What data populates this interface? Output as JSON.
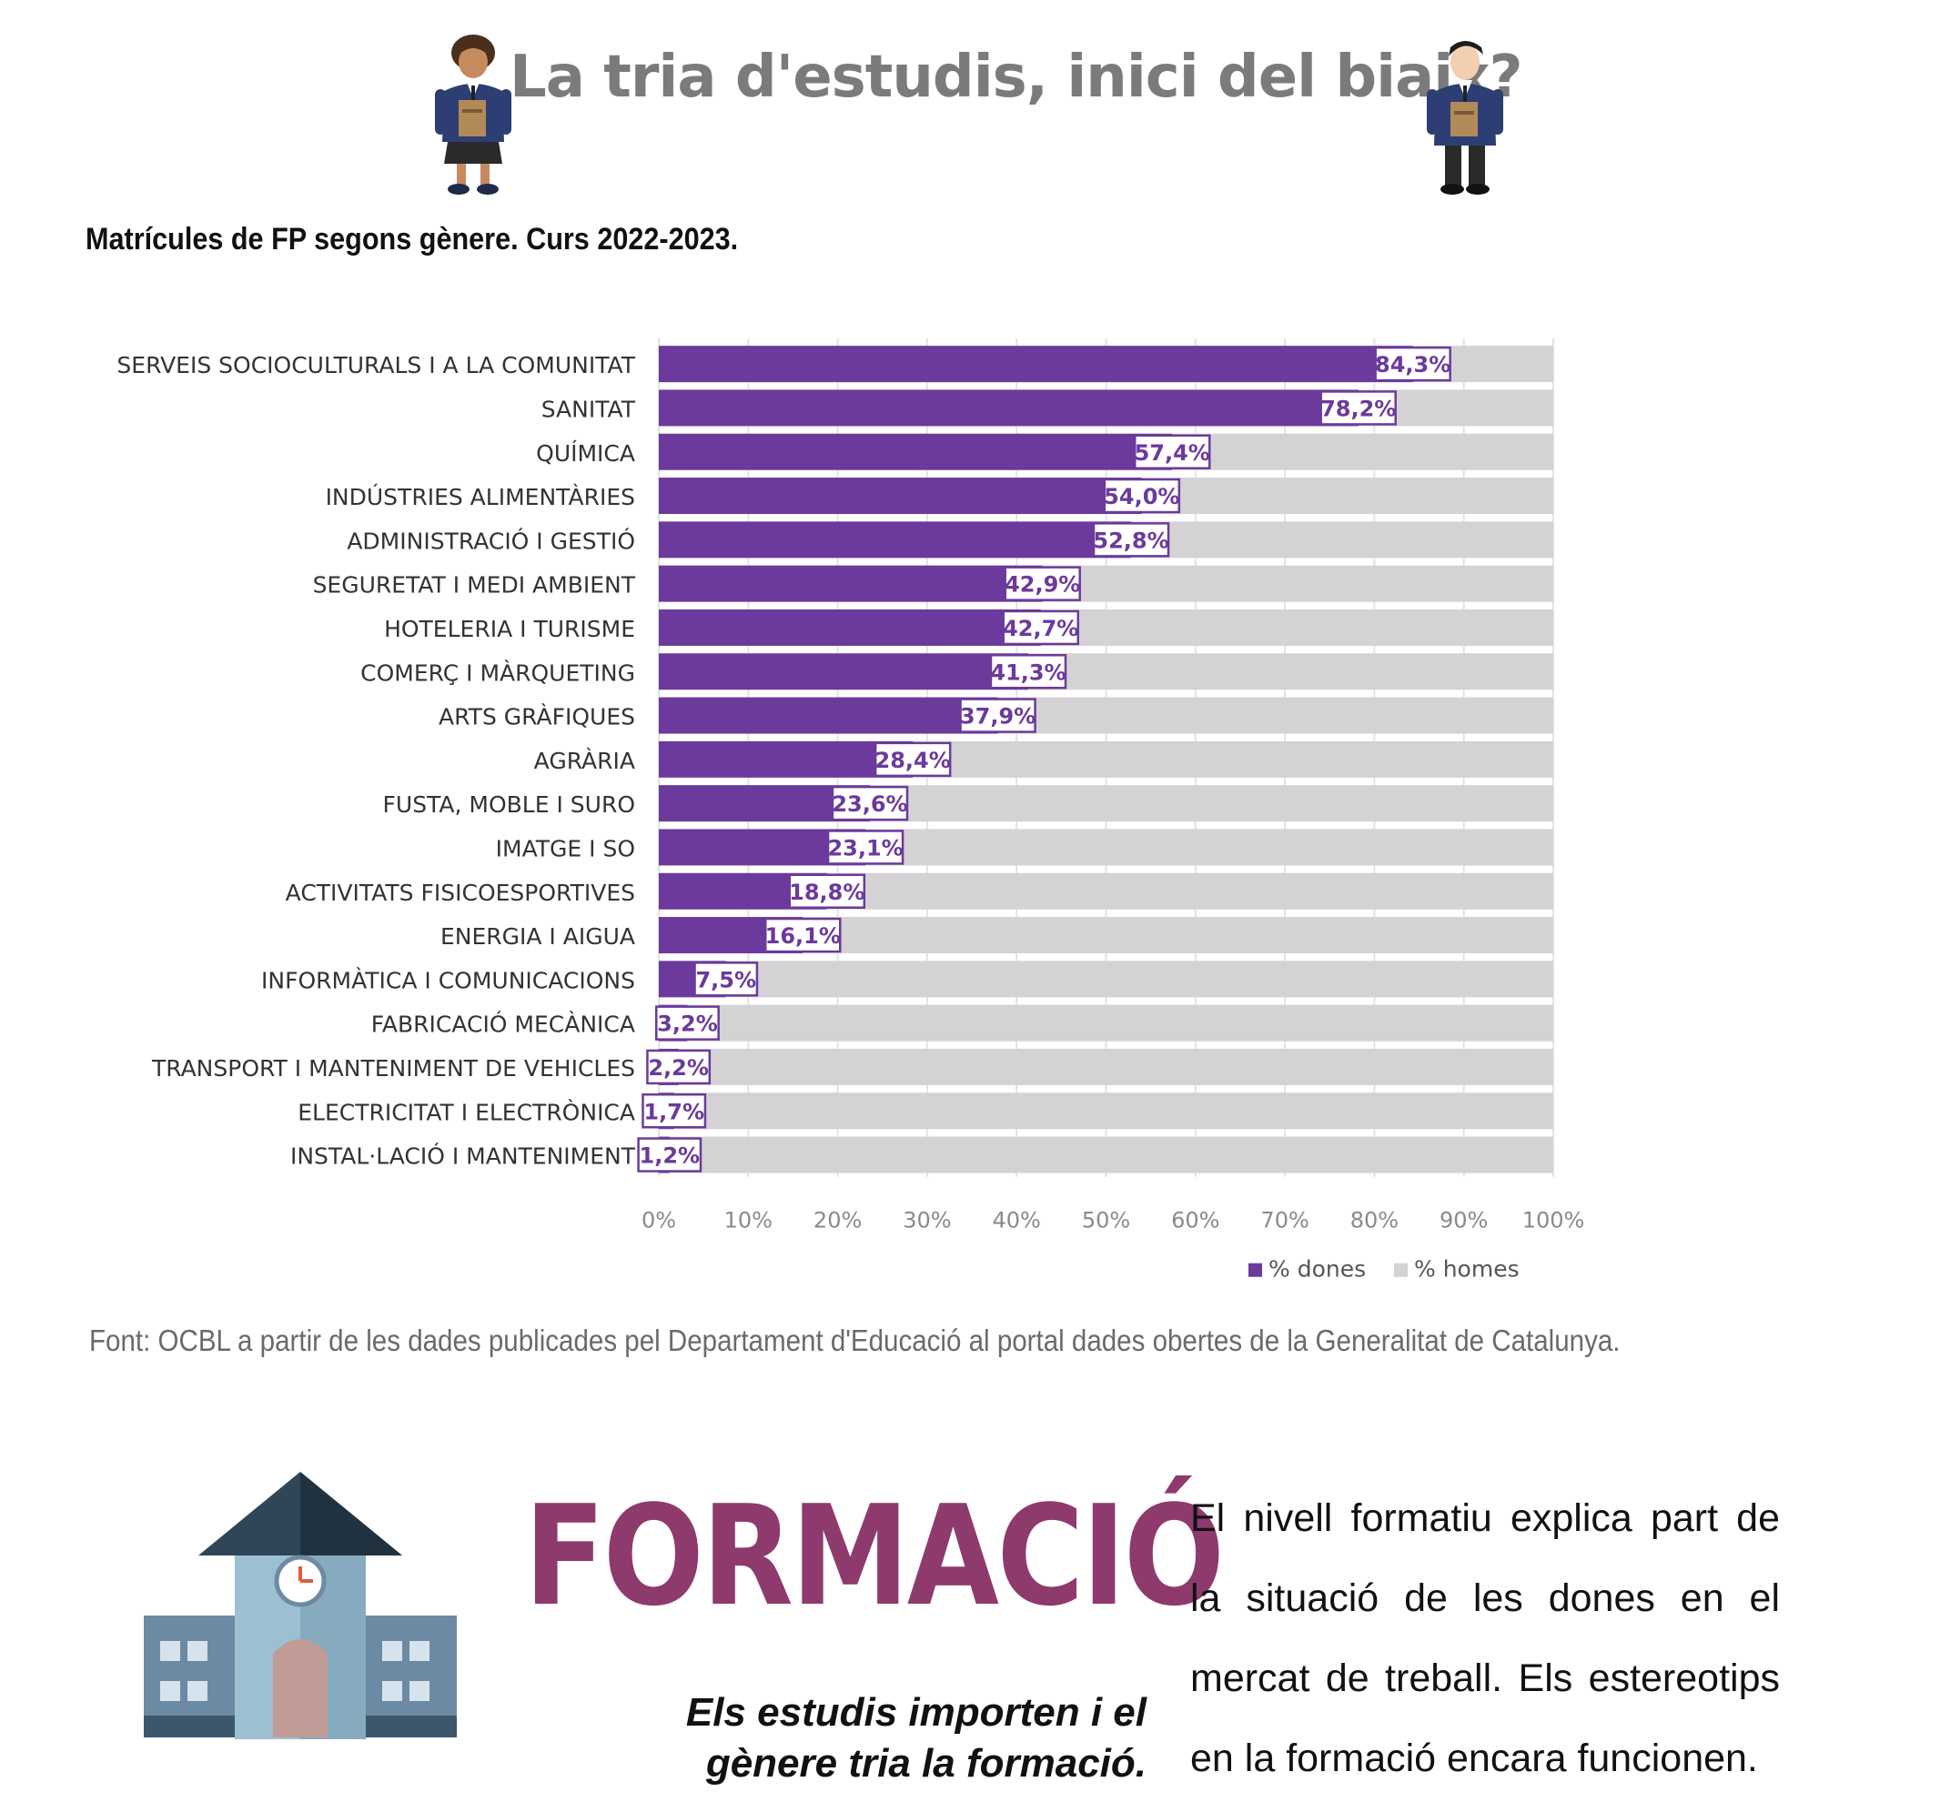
{
  "header": {
    "title": "La tria d'estudis, inici del biaix?",
    "left_icon": "student-girl-icon",
    "right_icon": "student-boy-icon"
  },
  "chart_title": "Matrícules de FP segons gènere. Curs 2022-2023.",
  "chart_data": {
    "type": "bar",
    "orientation": "horizontal",
    "stacked": true,
    "title": "Matrícules de FP segons gènere. Curs 2022-2023.",
    "categories": [
      "SERVEIS SOCIOCULTURALS I A LA COMUNITAT",
      "SANITAT",
      "QUÍMICA",
      "INDÚSTRIES ALIMENTÀRIES",
      "ADMINISTRACIÓ I GESTIÓ",
      "SEGURETAT I MEDI AMBIENT",
      "HOTELERIA I TURISME",
      "COMERÇ I MÀRQUETING",
      "ARTS GRÀFIQUES",
      "AGRÀRIA",
      "FUSTA, MOBLE I SURO",
      "IMATGE I SO",
      "ACTIVITATS FISICOESPORTIVES",
      "ENERGIA I AIGUA",
      "INFORMÀTICA I COMUNICACIONS",
      "FABRICACIÓ MECÀNICA",
      "TRANSPORT I MANTENIMENT DE VEHICLES",
      "ELECTRICITAT I ELECTRÒNICA",
      "INSTAL·LACIÓ I MANTENIMENT"
    ],
    "series": [
      {
        "name": "% dones",
        "color": "#6b3a9c",
        "values": [
          84.3,
          78.2,
          57.4,
          54.0,
          52.8,
          42.9,
          42.7,
          41.3,
          37.9,
          28.4,
          23.6,
          23.1,
          18.8,
          16.1,
          7.5,
          3.2,
          2.2,
          1.7,
          1.2
        ]
      },
      {
        "name": "% homes",
        "color": "#d4d2d4",
        "values": [
          15.7,
          21.8,
          42.6,
          46.0,
          47.2,
          57.1,
          57.3,
          58.7,
          62.1,
          71.6,
          76.4,
          76.9,
          81.2,
          83.9,
          92.5,
          96.8,
          97.8,
          98.3,
          98.8
        ]
      }
    ],
    "data_labels": [
      "84,3%",
      "78,2%",
      "57,4%",
      "54,0%",
      "52,8%",
      "42,9%",
      "42,7%",
      "41,3%",
      "37,9%",
      "28,4%",
      "23,6%",
      "23,1%",
      "18,8%",
      "16,1%",
      "7,5%",
      "3,2%",
      "2,2%",
      "1,7%",
      "1,2%"
    ],
    "xlim": [
      0,
      100
    ],
    "x_ticks": [
      "0%",
      "10%",
      "20%",
      "30%",
      "40%",
      "50%",
      "60%",
      "70%",
      "80%",
      "90%",
      "100%"
    ],
    "grid": true,
    "legend_position": "bottom-right"
  },
  "source": "Font: OCBL a partir de les dades publicades pel Departament d'Educació al portal dades obertes de la Generalitat de Catalunya.",
  "section": {
    "icon": "school-building-icon",
    "title": "FORMACIÓ",
    "tagline_line1": "Els estudis importen i el",
    "tagline_line2": "gènere tria la formació.",
    "body": "El nivell formatiu explica part de la situació de les dones en el mercat de treball. Els estereotips en la formació encara funcionen."
  }
}
